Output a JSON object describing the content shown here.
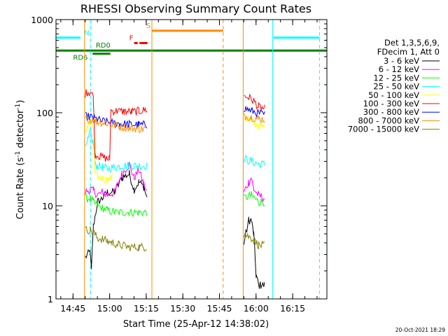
{
  "chart_data": {
    "type": "line",
    "title": "RHESSI Observing Summary Count Rates",
    "xlabel": "Start Time (25-Apr-12 14:38:02)",
    "ylabel_main": "Count Rate (s",
    "ylabel_sup1": "-1",
    "ylabel_mid": " detector",
    "ylabel_sup2": "-1",
    "ylabel_end": ")",
    "y_scale": "log",
    "ylim": [
      1,
      1000
    ],
    "xlim_minutes": [
      0,
      111
    ],
    "x_ticks": [
      {
        "label": "14:45",
        "min": 6.97
      },
      {
        "label": "15:00",
        "min": 21.97
      },
      {
        "label": "15:15",
        "min": 36.97
      },
      {
        "label": "15:30",
        "min": 51.97
      },
      {
        "label": "15:45",
        "min": 66.97
      },
      {
        "label": "16:00",
        "min": 81.97
      },
      {
        "label": "16:15",
        "min": 96.97
      }
    ],
    "y_ticks": [
      {
        "label": "1",
        "value": 1
      },
      {
        "label": "10",
        "value": 10
      },
      {
        "label": "100",
        "value": 100
      },
      {
        "label": "1000",
        "value": 1000
      }
    ],
    "legend": {
      "placement": "right",
      "header_line1": "Det 1,3,5,6,9,",
      "header_line2": "FDecim 1, Att 0"
    },
    "series": [
      {
        "name": "3 - 6 keV",
        "color": "#000000",
        "segments": [
          [
            [
              12,
              2.8
            ],
            [
              14,
              3.2
            ],
            [
              14.5,
              2.0
            ],
            [
              15.3,
              6
            ],
            [
              17,
              11
            ],
            [
              19,
              12
            ],
            [
              21,
              14
            ],
            [
              24,
              14
            ],
            [
              27,
              20
            ],
            [
              30,
              22
            ],
            [
              32,
              15
            ],
            [
              34,
              18
            ],
            [
              36,
              16
            ],
            [
              37.3,
              12
            ]
          ],
          [
            [
              77,
              4
            ],
            [
              79,
              7
            ],
            [
              80,
              7
            ],
            [
              81,
              5
            ],
            [
              82,
              1.8
            ],
            [
              83,
              1.4
            ],
            [
              84,
              1.4
            ],
            [
              85.5,
              1.4
            ]
          ]
        ]
      },
      {
        "name": "6 - 12 keV",
        "color": "#ff00ff",
        "segments": [
          [
            [
              12,
              14
            ],
            [
              14,
              15
            ],
            [
              15.3,
              14.5
            ],
            [
              17,
              13
            ],
            [
              19,
              14
            ],
            [
              21,
              13
            ],
            [
              24,
              14
            ],
            [
              27,
              22
            ],
            [
              30,
              28
            ],
            [
              32,
              20
            ],
            [
              34,
              24
            ],
            [
              36,
              17
            ],
            [
              37.3,
              14
            ]
          ],
          [
            [
              77,
              14
            ],
            [
              79,
              18
            ],
            [
              80,
              20
            ],
            [
              81,
              15
            ],
            [
              83,
              13
            ],
            [
              85.5,
              12
            ]
          ]
        ]
      },
      {
        "name": "12 - 25 keV",
        "color": "#00ff00",
        "segments": [
          [
            [
              12,
              12
            ],
            [
              14,
              12
            ],
            [
              15.3,
              11
            ],
            [
              17,
              10
            ],
            [
              19,
              9.5
            ],
            [
              21,
              9
            ],
            [
              24,
              8.5
            ],
            [
              30,
              8.5
            ],
            [
              34,
              8.5
            ],
            [
              37.3,
              8.5
            ]
          ],
          [
            [
              77,
              12
            ],
            [
              80,
              13
            ],
            [
              83,
              11
            ],
            [
              85.5,
              11
            ]
          ]
        ]
      },
      {
        "name": "25 - 50 keV",
        "color": "#00ffff",
        "segments": [
          [
            [
              12,
              40
            ],
            [
              13,
              50
            ],
            [
              14,
              60
            ],
            [
              15.3,
              48
            ],
            [
              16,
              28
            ],
            [
              17,
              27
            ],
            [
              19,
              26
            ],
            [
              21,
              25
            ],
            [
              24,
              26
            ],
            [
              28,
              27
            ],
            [
              32,
              27
            ],
            [
              36,
              27
            ],
            [
              37.3,
              27
            ]
          ],
          [
            [
              77,
              32
            ],
            [
              80,
              30
            ],
            [
              83,
              28
            ],
            [
              85.5,
              28
            ]
          ]
        ]
      },
      {
        "name": "50 - 100 keV",
        "color": "#ffff00",
        "segments": [
          [
            [
              12,
              65
            ],
            [
              13,
              72
            ],
            [
              14,
              75
            ],
            [
              15.3,
              70
            ],
            [
              16,
              22
            ],
            [
              18,
              20
            ],
            [
              21,
              19
            ],
            [
              23,
              20
            ]
          ],
          [
            [
              77,
              90
            ],
            [
              80,
              80
            ],
            [
              83,
              72
            ],
            [
              85.5,
              70
            ]
          ]
        ]
      },
      {
        "name": "100 - 300 keV",
        "color": "#ff0000",
        "segments": [
          [
            [
              12,
              160
            ],
            [
              13,
              168
            ],
            [
              14,
              165
            ],
            [
              15.3,
              150
            ],
            [
              16,
              36
            ],
            [
              18,
              34
            ],
            [
              21,
              32
            ],
            [
              22,
              32
            ],
            [
              22.5,
              105
            ],
            [
              25,
              104
            ],
            [
              28,
              103
            ],
            [
              31,
              102
            ],
            [
              34,
              104
            ],
            [
              37.3,
              108
            ]
          ],
          [
            [
              77,
              150
            ],
            [
              79,
              145
            ],
            [
              81,
              135
            ],
            [
              83,
              115
            ],
            [
              85.5,
              110
            ]
          ]
        ]
      },
      {
        "name": "300 - 800 keV",
        "color": "#0000ff",
        "segments": [
          [
            [
              12,
              92
            ],
            [
              14,
              90
            ],
            [
              15.3,
              88
            ],
            [
              17,
              84
            ],
            [
              20,
              80
            ],
            [
              23,
              78
            ],
            [
              26,
              76
            ],
            [
              30,
              75
            ],
            [
              34,
              74
            ],
            [
              37.3,
              74
            ]
          ],
          [
            [
              77,
              112
            ],
            [
              80,
              105
            ],
            [
              83,
              98
            ],
            [
              85.5,
              95
            ]
          ]
        ]
      },
      {
        "name": "800 - 7000 keV",
        "color": "#ff8c00",
        "segments": [
          [
            [
              12,
              85
            ],
            [
              14,
              86
            ],
            [
              15.3,
              84
            ],
            [
              17,
              80
            ],
            [
              20,
              78
            ],
            [
              23,
              74
            ],
            [
              26,
              71
            ],
            [
              30,
              69
            ],
            [
              34,
              67
            ],
            [
              37.3,
              67
            ]
          ],
          [
            [
              77,
              92
            ],
            [
              80,
              90
            ],
            [
              83,
              86
            ],
            [
              85.5,
              85
            ]
          ]
        ]
      },
      {
        "name": "7000 - 15000 keV",
        "color": "#808000",
        "segments": [
          [
            [
              12,
              5.5
            ],
            [
              14,
              5.5
            ],
            [
              15.3,
              5.2
            ],
            [
              17,
              4.5
            ],
            [
              19,
              4.4
            ],
            [
              21,
              4.2
            ],
            [
              23,
              4.0
            ],
            [
              26,
              3.8
            ],
            [
              30,
              3.6
            ],
            [
              34,
              3.6
            ],
            [
              37.3,
              3.6
            ]
          ],
          [
            [
              77,
              5
            ],
            [
              80,
              4.5
            ],
            [
              83,
              3.8
            ],
            [
              85.5,
              3.7
            ]
          ]
        ]
      }
    ],
    "flag_bars": [
      {
        "label": "N",
        "color": "#00ffff",
        "y_value": 640,
        "segments": [
          [
            0,
            10
          ],
          [
            89,
            108
          ]
        ],
        "label_min": 11.5
      },
      {
        "label": "S",
        "color": "#ff8c00",
        "y_value": 760,
        "segments": [
          [
            39.3,
            68.5
          ]
        ],
        "label_min": 37
      },
      {
        "label": "F",
        "color": "#ff0000",
        "y_value": 560,
        "segments": [
          [
            32,
            33.5
          ],
          [
            34.2,
            37.5
          ]
        ],
        "label_min": 30
      },
      {
        "label": "RD6",
        "color": "#008000",
        "y_value": 430,
        "segments": [
          [
            15,
            22.3
          ]
        ],
        "label_min": 7
      },
      {
        "label": "RD0",
        "color": "#008000",
        "y_value": 465,
        "segments": [
          [
            0,
            111
          ]
        ],
        "label_min": 16.3
      }
    ],
    "vlines": [
      {
        "min": 0,
        "color": "#00ffff",
        "dashed": false
      },
      {
        "min": 14.2,
        "color": "#00ffff",
        "dashed": true
      },
      {
        "min": 11.7,
        "color": "#ff8c00",
        "dashed": false
      },
      {
        "min": 39.3,
        "color": "#ff8c00",
        "dashed": false
      },
      {
        "min": 68.5,
        "color": "#ff8c00",
        "dashed": true
      },
      {
        "min": 76.7,
        "color": "#ff8c00",
        "dashed": false
      },
      {
        "min": 88.8,
        "color": "#00ffff",
        "dashed": false
      },
      {
        "min": 108,
        "color": "#00ffff",
        "dashed": true
      }
    ],
    "timestamp": "20-Oct-2021 18:29"
  }
}
